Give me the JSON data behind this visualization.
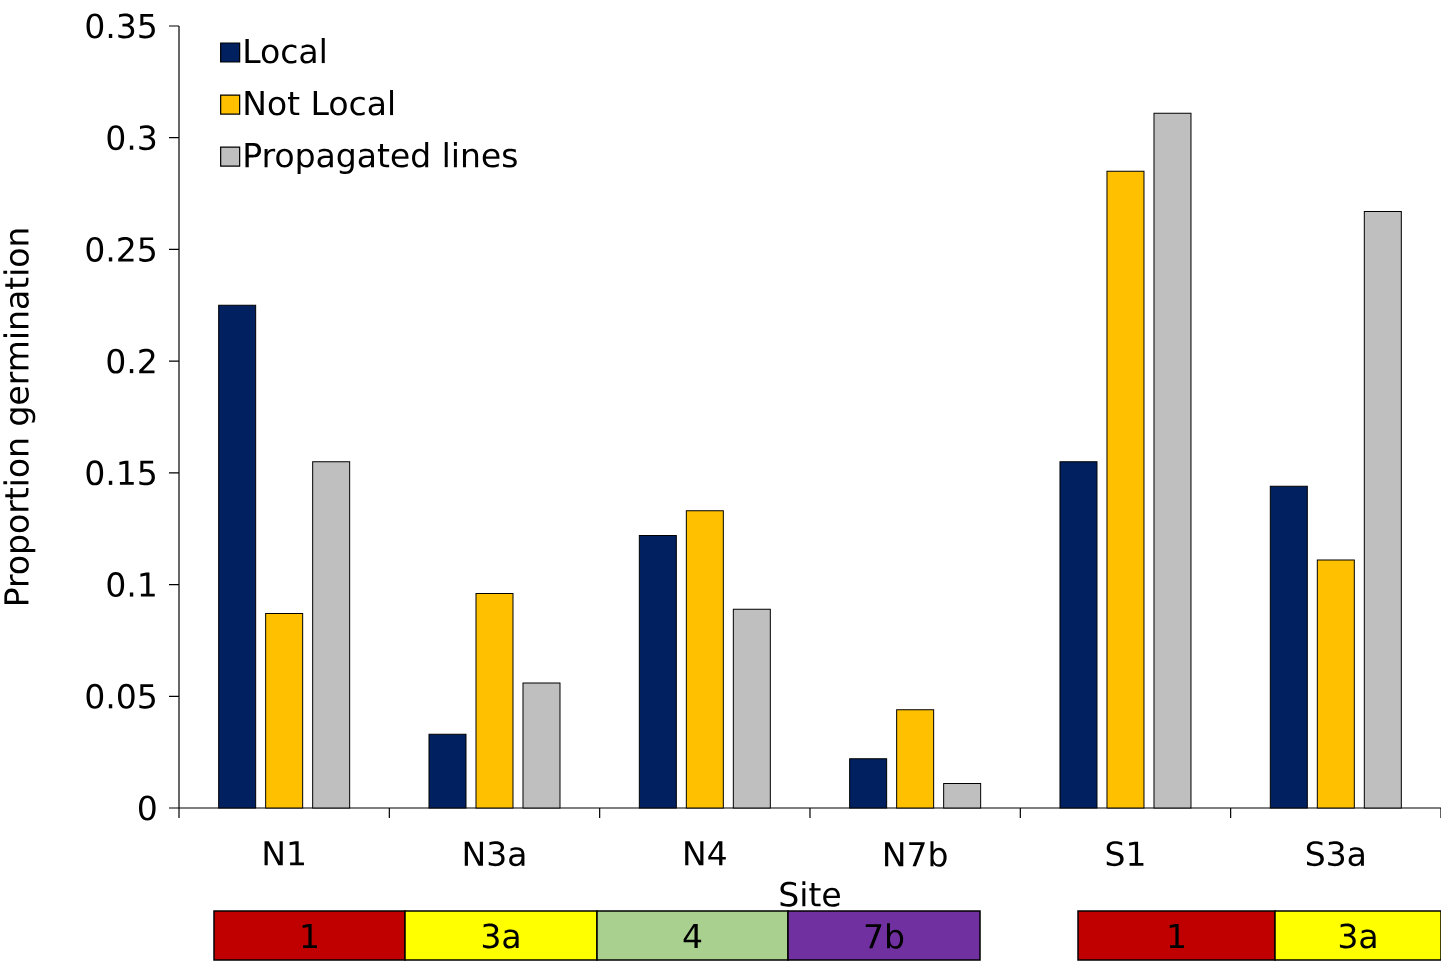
{
  "chart_data": {
    "type": "bar",
    "xlabel": "Site",
    "ylabel": "Proportion germination",
    "categories": [
      "N1",
      "N3a",
      "N4",
      "N7b",
      "S1",
      "S3a"
    ],
    "series": [
      {
        "name": "Local",
        "color": "#002060",
        "values": [
          0.225,
          0.033,
          0.122,
          0.022,
          0.155,
          0.144
        ]
      },
      {
        "name": "Not Local",
        "color": "#ffc000",
        "values": [
          0.087,
          0.096,
          0.133,
          0.044,
          0.285,
          0.111
        ]
      },
      {
        "name": "Propagated lines",
        "color": "#bfbfbf",
        "values": [
          0.155,
          0.056,
          0.089,
          0.011,
          0.311,
          0.267
        ]
      }
    ],
    "ylim": [
      0,
      0.35
    ],
    "yticks": [
      0,
      0.05,
      0.1,
      0.15,
      0.2,
      0.25,
      0.3,
      0.35
    ],
    "legend": "top left",
    "annotations": [
      "1",
      "3a",
      "4",
      "7b",
      "1",
      "3a"
    ]
  }
}
